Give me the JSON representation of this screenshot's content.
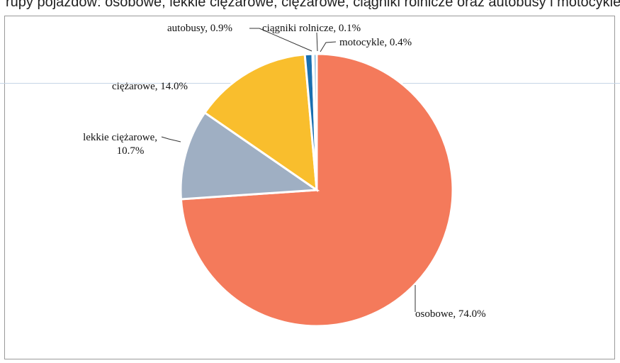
{
  "caption": "rupy pojazdów: osobowe, lekkie ciężarowe, ciężarowe, ciągniki rolnicze oraz autobusy i motocykle",
  "chart_data": {
    "type": "pie",
    "title": "",
    "slices": [
      {
        "name": "osobowe",
        "value": 74.0,
        "label": "osobowe, 74.0%",
        "color": "#F47A5B"
      },
      {
        "name": "lekkie ciężarowe",
        "value": 10.7,
        "label_lines": [
          "lekkie ciężarowe,",
          "10.7%"
        ],
        "color": "#9FAFC3"
      },
      {
        "name": "ciężarowe",
        "value": 14.0,
        "label": "ciężarowe, 14.0%",
        "color": "#F9BE2D"
      },
      {
        "name": "autobusy",
        "value": 0.9,
        "label": "autobusy, 0.9%",
        "color": "#1A6FB0"
      },
      {
        "name": "ciągniki rolnicze",
        "value": 0.1,
        "label": "ciągniki rolnicze, 0.1%",
        "color": "#6B8E23"
      },
      {
        "name": "motocykle",
        "value": 0.4,
        "label": "motocykle, 0.4%",
        "color": "#8FC1E0"
      }
    ],
    "legend": "none"
  }
}
